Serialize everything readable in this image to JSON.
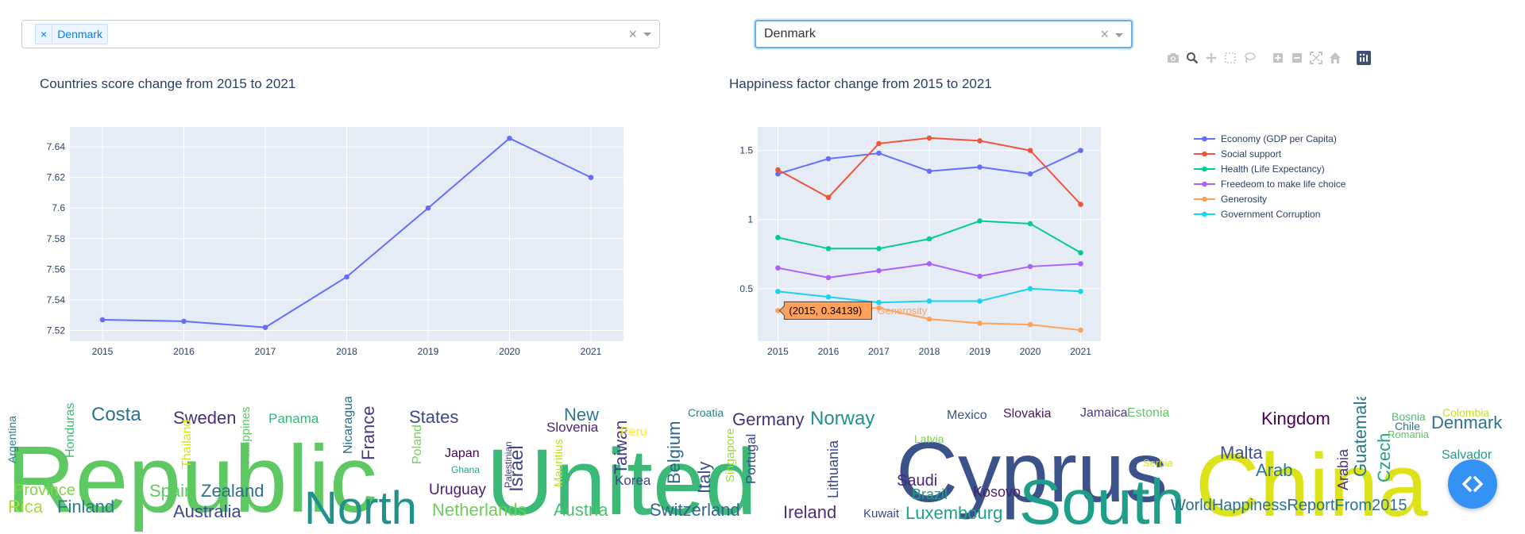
{
  "left_dropdown": {
    "chip_x": "×",
    "chip_label": "Denmark",
    "clear": "×"
  },
  "right_dropdown": {
    "value": "Denmark",
    "clear": "×"
  },
  "modebar": [
    "camera-icon",
    "zoom-icon",
    "pan-icon",
    "box-select-icon",
    "lasso-select-icon",
    "zoom-in-icon",
    "zoom-out-icon",
    "autoscale-icon",
    "reset-axes-icon",
    "plotly-logo-icon"
  ],
  "chart_data": [
    {
      "type": "line",
      "title": "Countries score change from 2015 to 2021",
      "x": [
        2015,
        2016,
        2017,
        2018,
        2019,
        2020,
        2021
      ],
      "series": [
        {
          "values": [
            7.527,
            7.526,
            7.522,
            7.555,
            7.6,
            7.6456,
            7.62
          ],
          "color": "#636efa"
        }
      ],
      "xlim": [
        2014.6,
        2021.4
      ],
      "ylim": [
        7.513,
        7.653
      ],
      "yticks": [
        7.52,
        7.54,
        7.56,
        7.58,
        7.6,
        7.62,
        7.64
      ],
      "ytick_labels": [
        "7.52",
        "7.54",
        "7.56",
        "7.58",
        "7.6",
        "7.62",
        "7.64"
      ],
      "grid": true
    },
    {
      "type": "line",
      "title": "Happiness factor change from 2015 to 2021",
      "x": [
        2015,
        2016,
        2017,
        2018,
        2019,
        2020,
        2021
      ],
      "series": [
        {
          "name": "Economy (GDP per Capita)",
          "color": "#636efa",
          "values": [
            1.33,
            1.44,
            1.48,
            1.35,
            1.38,
            1.33,
            1.5
          ]
        },
        {
          "name": "Social support",
          "color": "#ef553b",
          "values": [
            1.36,
            1.16,
            1.55,
            1.59,
            1.57,
            1.5,
            1.11
          ]
        },
        {
          "name": "Health (Life Expectancy)",
          "color": "#00cc96",
          "values": [
            0.87,
            0.79,
            0.79,
            0.86,
            0.99,
            0.97,
            0.76
          ]
        },
        {
          "name": "Freedeom to make life choice",
          "color": "#ab63fa",
          "values": [
            0.65,
            0.58,
            0.63,
            0.68,
            0.59,
            0.66,
            0.68
          ]
        },
        {
          "name": "Generosity",
          "color": "#ffa15a",
          "values": [
            0.34139,
            0.36,
            0.36,
            0.28,
            0.25,
            0.24,
            0.2
          ]
        },
        {
          "name": "Government Corruption",
          "color": "#19d3f3",
          "values": [
            0.48,
            0.44,
            0.4,
            0.41,
            0.41,
            0.5,
            0.48
          ]
        }
      ],
      "xlim": [
        2014.6,
        2021.4
      ],
      "ylim": [
        0.12,
        1.67
      ],
      "yticks": [
        0.5,
        1,
        1.5
      ],
      "ytick_labels": [
        "0.5",
        "1",
        "1.5"
      ],
      "legend_position": "right",
      "grid": true,
      "hover": {
        "label": "(2015, 0.34139)",
        "series": "Generosity"
      }
    }
  ],
  "wordcloud": {
    "words": [
      {
        "text": "Republic",
        "color": "#5ec962"
      },
      {
        "text": "United",
        "color": "#3aba76"
      },
      {
        "text": "Cyprus",
        "color": "#3b528b"
      },
      {
        "text": "China",
        "color": "#dde318"
      },
      {
        "text": "North",
        "color": "#21918c"
      },
      {
        "text": "South",
        "color": "#1f9e89"
      },
      {
        "text": "Costa",
        "color": "#2c728e"
      },
      {
        "text": "Sweden",
        "color": "#472d7b"
      },
      {
        "text": "Panama",
        "color": "#35b779"
      },
      {
        "text": "States",
        "color": "#414487"
      },
      {
        "text": "New",
        "color": "#2a788e"
      },
      {
        "text": "Slovenia",
        "color": "#482475"
      },
      {
        "text": "Croatia",
        "color": "#26828e"
      },
      {
        "text": "Germany",
        "color": "#46327e"
      },
      {
        "text": "Norway",
        "color": "#21918c"
      },
      {
        "text": "Mexico",
        "color": "#3b528b"
      },
      {
        "text": "Slovakia",
        "color": "#481668"
      },
      {
        "text": "Jamaica",
        "color": "#433e85"
      },
      {
        "text": "Estonia",
        "color": "#5ec962"
      },
      {
        "text": "Kingdom",
        "color": "#440154"
      },
      {
        "text": "Denmark",
        "color": "#2c728e"
      },
      {
        "text": "Malta",
        "color": "#3b528b"
      },
      {
        "text": "Arab",
        "color": "#2a788e"
      },
      {
        "text": "Saudi",
        "color": "#482878"
      },
      {
        "text": "Brazil",
        "color": "#1f9e89"
      },
      {
        "text": "Kosovo",
        "color": "#481b6d"
      },
      {
        "text": "Luxembourg",
        "color": "#1fa088"
      },
      {
        "text": "Ireland",
        "color": "#46327e"
      },
      {
        "text": "Kuwait",
        "color": "#3e4989"
      },
      {
        "text": "Switzerland",
        "color": "#31688e"
      },
      {
        "text": "Netherlands",
        "color": "#6ece58"
      },
      {
        "text": "Austria",
        "color": "#4ac16d"
      },
      {
        "text": "Australia",
        "color": "#3e4a89"
      },
      {
        "text": "Zealand",
        "color": "#2d708e"
      },
      {
        "text": "Spain",
        "color": "#5ec962"
      },
      {
        "text": "Finland",
        "color": "#287c8e"
      },
      {
        "text": "Rica",
        "color": "#addc30"
      },
      {
        "text": "Province",
        "color": "#86d549"
      },
      {
        "text": "Uruguay",
        "color": "#481f70"
      },
      {
        "text": "Japan",
        "color": "#450559"
      },
      {
        "text": "Israel",
        "color": "#3f4788"
      },
      {
        "text": "Belgium",
        "color": "#31688e"
      },
      {
        "text": "Italy",
        "color": "#3b528b"
      },
      {
        "text": "Taiwan",
        "color": "#443983"
      },
      {
        "text": "Korea",
        "color": "#414487"
      },
      {
        "text": "Lithuania",
        "color": "#3e4989"
      },
      {
        "text": "WorldHappinessReportFrom2015",
        "color": "#2c728e"
      },
      {
        "text": "Czech",
        "color": "#20a486"
      },
      {
        "text": "Guatemala",
        "color": "#2a788e"
      },
      {
        "text": "Arabia",
        "color": "#46327e"
      },
      {
        "text": "Salvador",
        "color": "#1e9b8a"
      },
      {
        "text": "Colombia",
        "color": "#c2df23"
      },
      {
        "text": "Bosnia",
        "color": "#46c06f"
      },
      {
        "text": "Chile",
        "color": "#2d718e"
      },
      {
        "text": "France",
        "color": "#453781"
      },
      {
        "text": "Poland",
        "color": "#73d056"
      },
      {
        "text": "Nicaragua",
        "color": "#31688e"
      },
      {
        "text": "Philippines",
        "color": "#5cc863"
      },
      {
        "text": "Argentina",
        "color": "#287d8e"
      },
      {
        "text": "Honduras",
        "color": "#3dbc74"
      },
      {
        "text": "Thailand",
        "color": "#d8e219"
      },
      {
        "text": "Portugal",
        "color": "#3e4989"
      },
      {
        "text": "Singapore",
        "color": "#a0da39"
      },
      {
        "text": "Latvia",
        "color": "#77d153"
      },
      {
        "text": "Romania",
        "color": "#5ec962"
      },
      {
        "text": "Serbia",
        "color": "#d5e21a"
      },
      {
        "text": "Peru",
        "color": "#fde725"
      },
      {
        "text": "Mauritius",
        "color": "#bddf26"
      },
      {
        "text": "Palestinian",
        "color": "#453882"
      },
      {
        "text": "Ghana",
        "color": "#21a685"
      }
    ]
  }
}
